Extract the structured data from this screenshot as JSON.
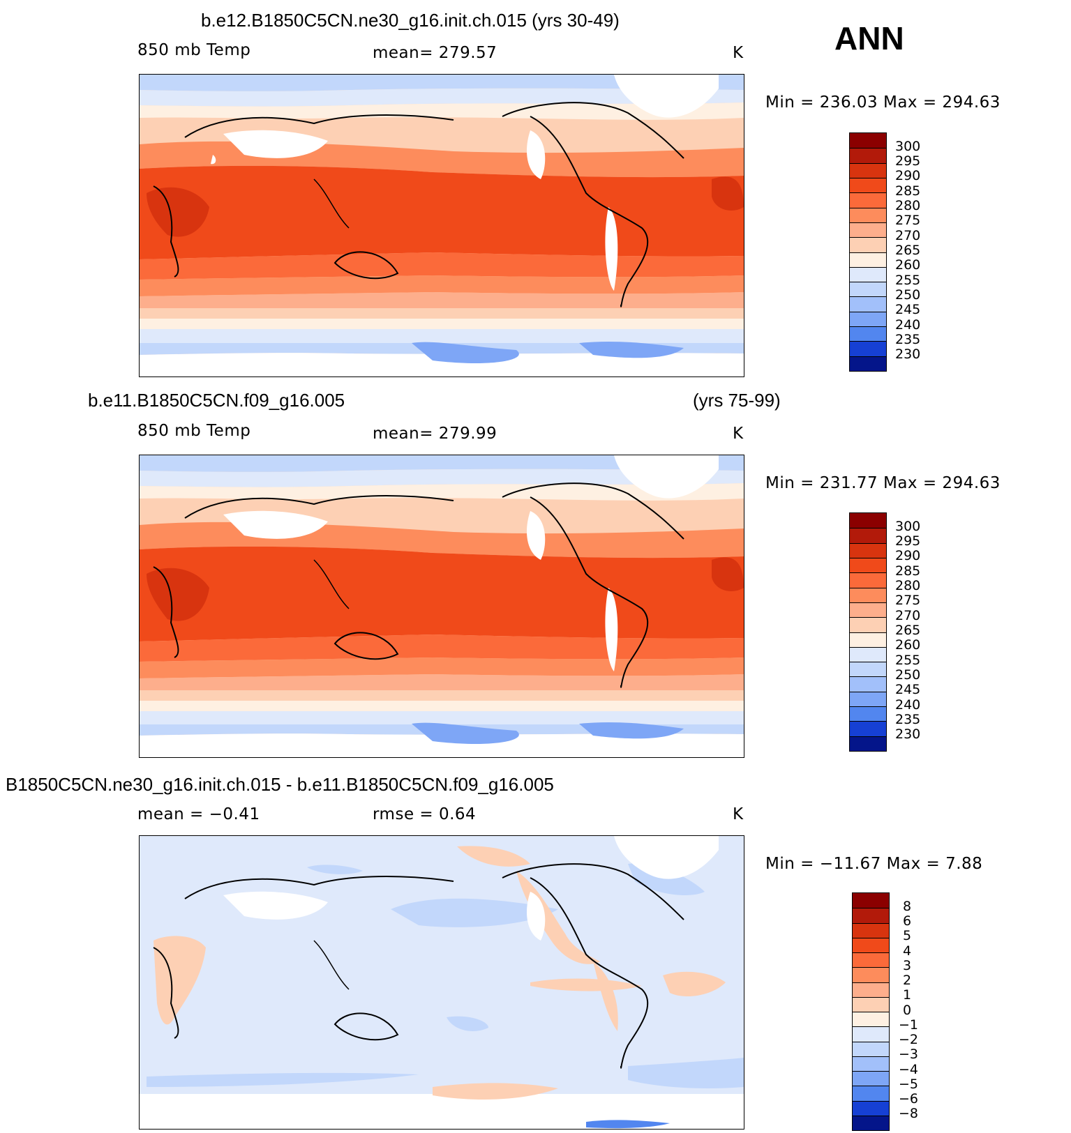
{
  "season": "ANN",
  "panels": [
    {
      "title": "b.e12.B1850C5CN.ne30_g16.init.ch.015 (yrs 30-49)",
      "title_right": "",
      "variable": "850 mb Temp",
      "stat": "mean=  279.57",
      "units": "K",
      "minmax": "Min  =  236.03  Max  =  294.63",
      "colorbar_labels": [
        "300",
        "295",
        "290",
        "285",
        "280",
        "275",
        "270",
        "265",
        "260",
        "255",
        "250",
        "245",
        "240",
        "235",
        "230"
      ]
    },
    {
      "title": "b.e11.B1850C5CN.f09_g16.005",
      "title_right": "(yrs 75-99)",
      "variable": "850 mb Temp",
      "stat": "mean=  279.99",
      "units": "K",
      "minmax": "Min  =  231.77  Max  =  294.63",
      "colorbar_labels": [
        "300",
        "295",
        "290",
        "285",
        "280",
        "275",
        "270",
        "265",
        "260",
        "255",
        "250",
        "245",
        "240",
        "235",
        "230"
      ]
    },
    {
      "title": "B1850C5CN.ne30_g16.init.ch.015 - b.e11.B1850C5CN.f09_g16.005",
      "title_right": "",
      "variable": "mean  =    −0.41",
      "stat": "rmse  =     0.64",
      "units": "K",
      "minmax": "Min  =  −11.67  Max  =     7.88",
      "colorbar_labels": [
        "8",
        "6",
        "5",
        "4",
        "3",
        "2",
        "1",
        "0",
        "−1",
        "−2",
        "−3",
        "−4",
        "−5",
        "−6",
        "−8"
      ]
    }
  ],
  "colors": {
    "warm_scale": [
      "#8b0000",
      "#b21a0a",
      "#d8340f",
      "#f04a1a",
      "#fb6a3a",
      "#fd8c5c",
      "#fdae8c",
      "#fdd0b4",
      "#fef0e2",
      "#dfe9fb",
      "#c2d7fb",
      "#a2c0fa",
      "#7ea6f6",
      "#5286ef",
      "#2f62e6",
      "#1640d4",
      "#0a28b4",
      "#04158a"
    ]
  }
}
